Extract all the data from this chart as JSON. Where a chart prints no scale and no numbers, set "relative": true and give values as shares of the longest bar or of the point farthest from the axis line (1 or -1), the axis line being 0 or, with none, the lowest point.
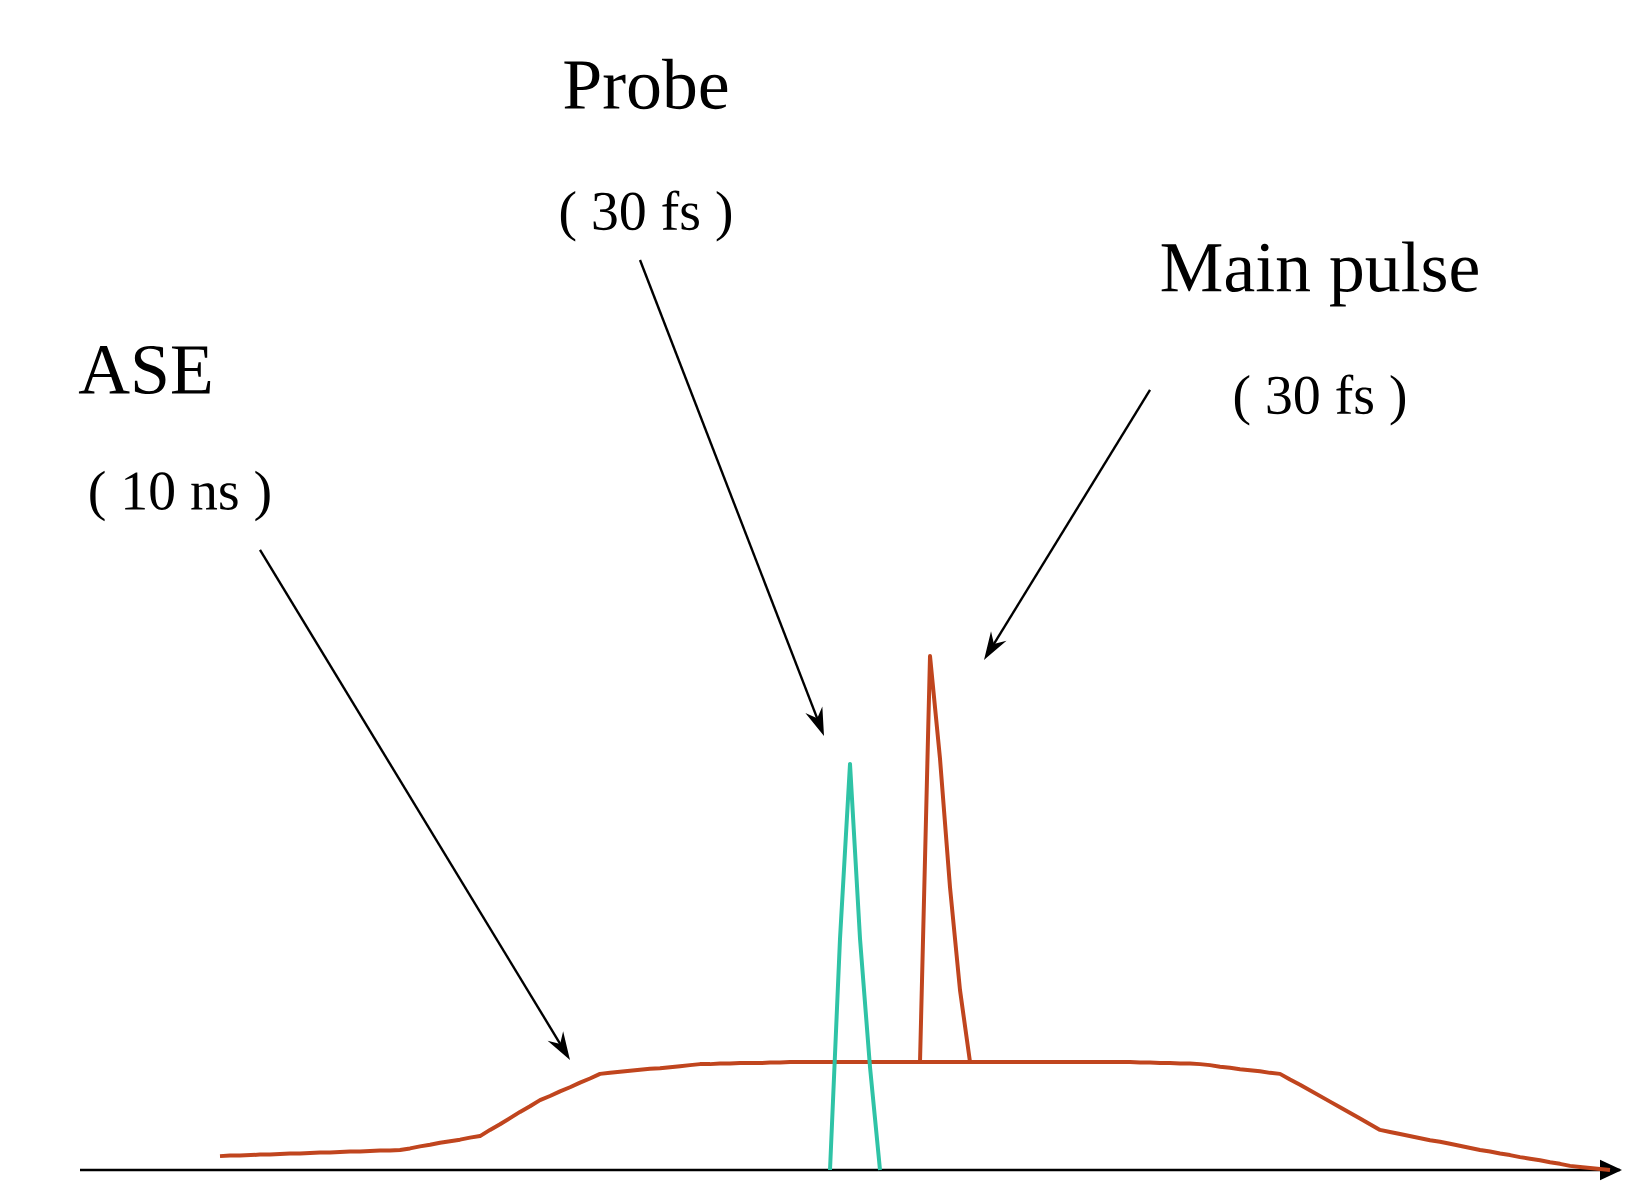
{
  "chart_data": {
    "type": "line",
    "relative": true,
    "categories": [
      null,
      null,
      null,
      null,
      null,
      null,
      null,
      null,
      null,
      null,
      null,
      null,
      null,
      null,
      null,
      null,
      null,
      null,
      null,
      null,
      null,
      null,
      null,
      null,
      null,
      null,
      null,
      null,
      null,
      null,
      null,
      null,
      null,
      null,
      null,
      null,
      null,
      null,
      null,
      null,
      null,
      null,
      null,
      null,
      null,
      null,
      null,
      null,
      null,
      null,
      null,
      null,
      null,
      null,
      null,
      null,
      null,
      null,
      null,
      null,
      null,
      null,
      null,
      null,
      null,
      null,
      null,
      null,
      null,
      null,
      null,
      null,
      null,
      null,
      null,
      null,
      null,
      null,
      null,
      null,
      null,
      null,
      null,
      null,
      null,
      null,
      null,
      null,
      null,
      null,
      null,
      null,
      null,
      null,
      null,
      null,
      null,
      null,
      null,
      null,
      null,
      null,
      null,
      null,
      null,
      null,
      null,
      null,
      null,
      null,
      null,
      null,
      null,
      null,
      null,
      null,
      null,
      null,
      null,
      null,
      null,
      null,
      null,
      null,
      null,
      null,
      null,
      null,
      null,
      null,
      null,
      null,
      null,
      null,
      null,
      null,
      null,
      null,
      null,
      null,
      null,
      null,
      null,
      null,
      null,
      null,
      null,
      null,
      null,
      null,
      null,
      null,
      null,
      null,
      null
    ],
    "series": [
      {
        "color": "#c0451e",
        "values": [
          null,
          null,
          null,
          null,
          null,
          null,
          null,
          null,
          null,
          null,
          null,
          null,
          null,
          null,
          0.027,
          0.028,
          0.028,
          0.029,
          0.03,
          0.03,
          0.031,
          0.032,
          0.032,
          0.033,
          0.034,
          0.034,
          0.035,
          0.036,
          0.036,
          0.037,
          0.038,
          0.038,
          0.039,
          0.042,
          0.046,
          0.049,
          0.053,
          0.056,
          0.059,
          0.063,
          0.066,
          0.078,
          0.089,
          0.101,
          0.113,
          0.124,
          0.136,
          0.144,
          0.153,
          0.161,
          0.17,
          0.178,
          0.187,
          0.189,
          0.191,
          0.193,
          0.195,
          0.197,
          0.198,
          0.2,
          0.202,
          0.204,
          0.206,
          0.206,
          0.207,
          0.207,
          0.208,
          0.208,
          0.208,
          0.209,
          0.209,
          0.21,
          0.21,
          0.21,
          0.21,
          0.21,
          0.21,
          0.21,
          0.21,
          0.21,
          0.21,
          0.21,
          0.21,
          0.21,
          0.21,
          0.21,
          0.21,
          0.21,
          0.21,
          0.21,
          0.21,
          0.21,
          0.21,
          0.21,
          0.21,
          0.21,
          0.21,
          0.21,
          0.21,
          0.21,
          0.21,
          0.21,
          0.21,
          0.21,
          0.21,
          0.21,
          0.209,
          0.209,
          0.208,
          0.208,
          0.207,
          0.207,
          0.206,
          0.204,
          0.201,
          0.199,
          0.196,
          0.194,
          0.192,
          0.189,
          0.187,
          0.176,
          0.166,
          0.155,
          0.144,
          0.133,
          0.122,
          0.111,
          0.1,
          0.089,
          0.078,
          0.074,
          0.07,
          0.066,
          0.062,
          0.058,
          0.055,
          0.051,
          0.047,
          0.043,
          0.039,
          0.036,
          0.032,
          0.029,
          0.025,
          0.022,
          0.019,
          0.015,
          0.012,
          0.008,
          0.006,
          0.004,
          0.002,
          0,
          null
        ]
      },
      {
        "color": "#2fc3a6",
        "values": [
          null,
          null,
          null,
          null,
          null,
          null,
          null,
          null,
          null,
          null,
          null,
          null,
          null,
          null,
          null,
          null,
          null,
          null,
          null,
          null,
          null,
          null,
          null,
          null,
          null,
          null,
          null,
          null,
          null,
          null,
          null,
          null,
          null,
          null,
          null,
          null,
          null,
          null,
          null,
          null,
          null,
          null,
          null,
          null,
          null,
          null,
          null,
          null,
          null,
          null,
          null,
          null,
          null,
          null,
          null,
          null,
          null,
          null,
          null,
          null,
          null,
          null,
          null,
          null,
          null,
          null,
          null,
          null,
          null,
          null,
          null,
          null,
          null,
          null,
          null,
          0,
          0.45,
          0.79,
          0.45,
          0.2,
          0,
          null,
          null,
          null,
          null,
          null,
          null,
          null,
          null,
          null,
          null,
          null,
          null,
          null,
          null,
          null,
          null,
          null,
          null,
          null,
          null,
          null,
          null,
          null,
          null,
          null,
          null,
          null,
          null,
          null,
          null,
          null,
          null,
          null,
          null,
          null,
          null,
          null,
          null,
          null,
          null,
          null,
          null,
          null,
          null,
          null,
          null,
          null,
          null,
          null,
          null,
          null,
          null,
          null,
          null,
          null,
          null,
          null,
          null,
          null,
          null,
          null,
          null,
          null,
          null,
          null,
          null,
          null,
          null,
          null,
          null,
          null,
          null,
          null,
          null
        ]
      },
      {
        "color": "#c0451e",
        "values": [
          null,
          null,
          null,
          null,
          null,
          null,
          null,
          null,
          null,
          null,
          null,
          null,
          null,
          null,
          null,
          null,
          null,
          null,
          null,
          null,
          null,
          null,
          null,
          null,
          null,
          null,
          null,
          null,
          null,
          null,
          null,
          null,
          null,
          null,
          null,
          null,
          null,
          null,
          null,
          null,
          null,
          null,
          null,
          null,
          null,
          null,
          null,
          null,
          null,
          null,
          null,
          null,
          null,
          null,
          null,
          null,
          null,
          null,
          null,
          null,
          null,
          null,
          null,
          null,
          null,
          null,
          null,
          null,
          null,
          null,
          null,
          null,
          null,
          null,
          null,
          null,
          null,
          null,
          null,
          null,
          null,
          null,
          null,
          null,
          0.21,
          1,
          0.8,
          0.55,
          0.35,
          0.21,
          null,
          null,
          null,
          null,
          null,
          null,
          null,
          null,
          null,
          null,
          null,
          null,
          null,
          null,
          null,
          null,
          null,
          null,
          null,
          null,
          null,
          null,
          null,
          null,
          null,
          null,
          null,
          null,
          null,
          null,
          null,
          null,
          null,
          null,
          null,
          null,
          null,
          null,
          null,
          null,
          null,
          null,
          null,
          null,
          null,
          null,
          null,
          null,
          null,
          null,
          null,
          null,
          null,
          null,
          null,
          null,
          null,
          null,
          null,
          null,
          null,
          null,
          null,
          null,
          null
        ]
      }
    ],
    "annotations": [
      "ASE",
      "( 10 ns )",
      "Probe",
      "( 30 fs )",
      "Main pulse",
      "( 30 fs )"
    ]
  }
}
